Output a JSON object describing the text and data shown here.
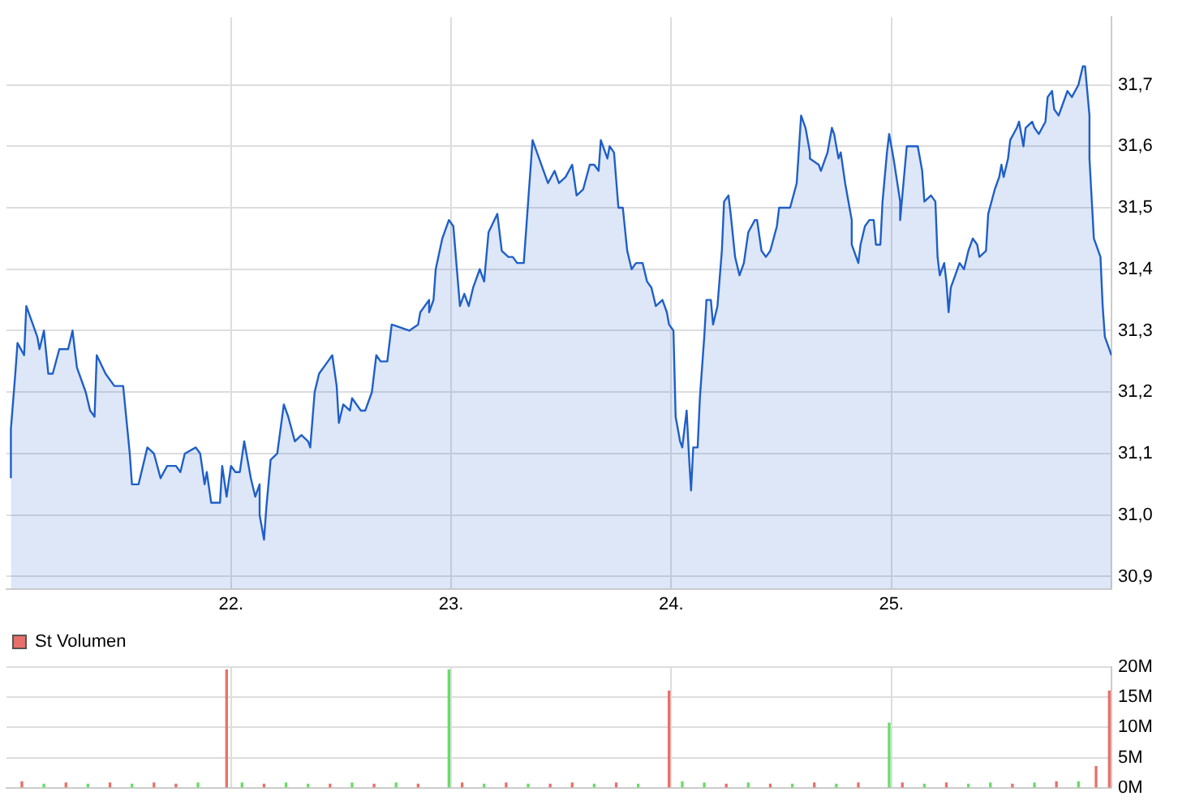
{
  "chart_data": [
    {
      "type": "area",
      "xlim": [
        20.98,
        26.0
      ],
      "xticks": [
        {
          "value": 22,
          "label": "22."
        },
        {
          "value": 23,
          "label": "23."
        },
        {
          "value": 24,
          "label": "24."
        },
        {
          "value": 25,
          "label": "25."
        }
      ],
      "ylim": [
        30.88,
        31.81
      ],
      "yticks": [
        {
          "value": 30.9,
          "label": "30,9"
        },
        {
          "value": 31.0,
          "label": "31,0"
        },
        {
          "value": 31.1,
          "label": "31,1"
        },
        {
          "value": 31.2,
          "label": "31,2"
        },
        {
          "value": 31.3,
          "label": "31,3"
        },
        {
          "value": 31.4,
          "label": "31,4"
        },
        {
          "value": 31.5,
          "label": "31,5"
        },
        {
          "value": 31.6,
          "label": "31,6"
        },
        {
          "value": 31.7,
          "label": "31,7"
        }
      ],
      "grid": true,
      "series": [
        {
          "color": "#1f5fc8",
          "x": [
            21.0,
            21.0,
            21.02,
            21.03,
            21.06,
            21.07,
            21.1,
            21.12,
            21.13,
            21.15,
            21.17,
            21.19,
            21.22,
            21.26,
            21.28,
            21.3,
            21.34,
            21.36,
            21.38,
            21.39,
            21.43,
            21.47,
            21.51,
            21.54,
            21.55,
            21.58,
            21.62,
            21.65,
            21.68,
            21.71,
            21.75,
            21.77,
            21.79,
            21.84,
            21.86,
            21.88,
            21.89,
            21.91,
            21.93,
            21.95,
            21.96,
            21.98,
            22.0,
            22.02,
            22.04,
            22.06,
            22.09,
            22.11,
            22.13,
            22.13,
            22.15,
            22.16,
            22.18,
            22.21,
            22.24,
            22.26,
            22.29,
            22.32,
            22.35,
            22.36,
            22.38,
            22.4,
            22.44,
            22.46,
            22.48,
            22.49,
            22.51,
            22.54,
            22.55,
            22.59,
            22.61,
            22.64,
            22.66,
            22.68,
            22.71,
            22.73,
            22.81,
            22.85,
            22.86,
            22.9,
            22.9,
            22.92,
            22.93,
            22.96,
            22.99,
            23.01,
            23.04,
            23.06,
            23.08,
            23.1,
            23.13,
            23.15,
            23.17,
            23.21,
            23.23,
            23.26,
            23.28,
            23.3,
            23.33,
            23.35,
            23.37,
            23.39,
            23.42,
            23.44,
            23.47,
            23.49,
            23.52,
            23.55,
            23.57,
            23.6,
            23.63,
            23.65,
            23.67,
            23.68,
            23.71,
            23.72,
            23.74,
            23.76,
            23.78,
            23.8,
            23.82,
            23.84,
            23.87,
            23.89,
            23.91,
            23.93,
            23.96,
            23.98,
            23.99,
            24.01,
            24.02,
            24.04,
            24.05,
            24.07,
            24.08,
            24.09,
            24.1,
            24.12,
            24.13,
            24.15,
            24.16,
            24.18,
            24.19,
            24.21,
            24.23,
            24.24,
            24.26,
            24.27,
            24.29,
            24.31,
            24.33,
            24.35,
            24.38,
            24.39,
            24.41,
            24.43,
            24.45,
            24.48,
            24.49,
            24.54,
            24.57,
            24.59,
            24.61,
            24.63,
            24.63,
            24.67,
            24.68,
            24.71,
            24.73,
            24.74,
            24.76,
            24.77,
            24.79,
            24.82,
            24.82,
            24.85,
            24.86,
            24.88,
            24.9,
            24.92,
            24.93,
            24.95,
            24.96,
            24.98,
            24.99,
            25.0,
            25.01,
            25.04,
            25.04,
            25.07,
            25.07,
            25.12,
            25.14,
            25.15,
            25.18,
            25.2,
            25.21,
            25.22,
            25.24,
            25.25,
            25.26,
            25.27,
            25.29,
            25.31,
            25.33,
            25.35,
            25.37,
            25.39,
            25.4,
            25.43,
            25.44,
            25.47,
            25.49,
            25.5,
            25.51,
            25.53,
            25.54,
            25.57,
            25.58,
            25.6,
            25.61,
            25.64,
            25.65,
            25.67,
            25.7,
            25.71,
            25.73,
            25.74,
            25.76,
            25.78,
            25.8,
            25.82,
            25.85,
            25.87,
            25.88,
            25.9,
            25.9,
            25.92,
            25.93,
            25.95,
            25.96,
            25.97,
            25.99,
            26.0
          ],
          "values": [
            31.06,
            31.14,
            31.23,
            31.28,
            31.26,
            31.34,
            31.31,
            31.29,
            31.27,
            31.3,
            31.23,
            31.23,
            31.27,
            31.27,
            31.3,
            31.24,
            31.2,
            31.17,
            31.16,
            31.26,
            31.23,
            31.21,
            31.21,
            31.1,
            31.05,
            31.05,
            31.11,
            31.1,
            31.06,
            31.08,
            31.08,
            31.07,
            31.1,
            31.11,
            31.1,
            31.05,
            31.07,
            31.02,
            31.02,
            31.02,
            31.08,
            31.03,
            31.08,
            31.07,
            31.07,
            31.12,
            31.06,
            31.03,
            31.05,
            31.0,
            30.96,
            31.01,
            31.09,
            31.1,
            31.18,
            31.16,
            31.12,
            31.13,
            31.12,
            31.11,
            31.2,
            31.23,
            31.25,
            31.26,
            31.21,
            31.15,
            31.18,
            31.17,
            31.19,
            31.17,
            31.17,
            31.2,
            31.26,
            31.25,
            31.25,
            31.31,
            31.3,
            31.31,
            31.33,
            31.35,
            31.33,
            31.35,
            31.4,
            31.45,
            31.48,
            31.47,
            31.34,
            31.36,
            31.34,
            31.37,
            31.4,
            31.38,
            31.46,
            31.49,
            31.43,
            31.42,
            31.42,
            31.41,
            31.41,
            31.51,
            31.61,
            31.59,
            31.56,
            31.54,
            31.56,
            31.54,
            31.55,
            31.57,
            31.52,
            31.53,
            31.57,
            31.57,
            31.56,
            31.61,
            31.58,
            31.6,
            31.59,
            31.5,
            31.5,
            31.43,
            31.4,
            31.41,
            31.41,
            31.38,
            31.37,
            31.34,
            31.35,
            31.33,
            31.31,
            31.3,
            31.16,
            31.12,
            31.11,
            31.17,
            31.1,
            31.04,
            31.11,
            31.11,
            31.19,
            31.29,
            31.35,
            31.35,
            31.31,
            31.34,
            31.43,
            31.51,
            31.52,
            31.49,
            31.42,
            31.39,
            31.41,
            31.46,
            31.48,
            31.48,
            31.43,
            31.42,
            31.43,
            31.47,
            31.5,
            31.5,
            31.54,
            31.65,
            31.63,
            31.59,
            31.58,
            31.57,
            31.56,
            31.59,
            31.63,
            31.62,
            31.58,
            31.59,
            31.54,
            31.48,
            31.44,
            31.41,
            31.44,
            31.47,
            31.48,
            31.48,
            31.44,
            31.44,
            31.51,
            31.59,
            31.62,
            31.6,
            31.58,
            31.51,
            31.48,
            31.6,
            31.6,
            31.6,
            31.56,
            31.51,
            31.52,
            31.51,
            31.42,
            31.39,
            31.41,
            31.38,
            31.33,
            31.37,
            31.39,
            31.41,
            31.4,
            31.43,
            31.45,
            31.44,
            31.42,
            31.43,
            31.49,
            31.53,
            31.55,
            31.57,
            31.55,
            31.58,
            31.61,
            31.63,
            31.64,
            31.6,
            31.63,
            31.64,
            31.63,
            31.62,
            31.64,
            31.68,
            31.69,
            31.66,
            31.65,
            31.67,
            31.69,
            31.68,
            31.7,
            31.73,
            31.73,
            31.65,
            31.58,
            31.45,
            31.44,
            31.42,
            31.34,
            31.29,
            31.27,
            31.26
          ]
        }
      ]
    },
    {
      "type": "bar",
      "legend": "top left",
      "tick_labels": "y",
      "xlim": [
        20.98,
        26.0
      ],
      "xticks": [
        {
          "value": 22,
          "label": null
        },
        {
          "value": 23,
          "label": null
        },
        {
          "value": 24,
          "label": null
        },
        {
          "value": 25,
          "label": null
        }
      ],
      "ylim": [
        0,
        20
      ],
      "yticks": [
        {
          "value": 0,
          "label": "0M"
        },
        {
          "value": 5,
          "label": "5M"
        },
        {
          "value": 10,
          "label": "10M"
        },
        {
          "value": 15,
          "label": "15M"
        },
        {
          "value": 20,
          "label": "20M"
        }
      ],
      "grid": true,
      "series": [
        {
          "name": "St Volumen",
          "color": "#e8706a",
          "x": [
            21.05,
            21.15,
            21.25,
            21.35,
            21.45,
            21.55,
            21.65,
            21.75,
            21.85,
            21.98,
            22.05,
            22.15,
            22.25,
            22.35,
            22.45,
            22.55,
            22.65,
            22.75,
            22.85,
            22.99,
            23.05,
            23.15,
            23.25,
            23.35,
            23.45,
            23.55,
            23.65,
            23.75,
            23.85,
            23.99,
            24.05,
            24.15,
            24.25,
            24.35,
            24.45,
            24.55,
            24.65,
            24.75,
            24.85,
            24.99,
            25.05,
            25.15,
            25.25,
            25.35,
            25.45,
            25.55,
            25.65,
            25.75,
            25.85,
            25.93,
            25.99
          ],
          "values": [
            1.0,
            0.6,
            0.8,
            0.6,
            0.8,
            0.6,
            0.8,
            0.6,
            0.8,
            19.5,
            0.8,
            0.6,
            0.8,
            0.6,
            0.6,
            0.8,
            0.6,
            0.8,
            0.6,
            19.5,
            0.8,
            0.6,
            0.8,
            0.6,
            0.6,
            0.8,
            0.6,
            0.8,
            0.6,
            16,
            1.0,
            0.8,
            0.6,
            0.8,
            0.6,
            0.6,
            0.8,
            0.6,
            0.8,
            10.7,
            0.8,
            0.6,
            0.8,
            0.6,
            0.8,
            0.6,
            0.8,
            1.0,
            1.0,
            3.5,
            16
          ],
          "colors": [
            "#e8706a",
            "#66dd66",
            "#e8706a",
            "#66dd66",
            "#e8706a",
            "#66dd66",
            "#e8706a",
            "#e8706a",
            "#66dd66",
            "#e8706a",
            "#66dd66",
            "#e8706a",
            "#66dd66",
            "#66dd66",
            "#e8706a",
            "#66dd66",
            "#e8706a",
            "#66dd66",
            "#e8706a",
            "#66dd66",
            "#e8706a",
            "#66dd66",
            "#e8706a",
            "#66dd66",
            "#e8706a",
            "#e8706a",
            "#66dd66",
            "#e8706a",
            "#66dd66",
            "#e8706a",
            "#66dd66",
            "#66dd66",
            "#e8706a",
            "#66dd66",
            "#e8706a",
            "#66dd66",
            "#e8706a",
            "#66dd66",
            "#e8706a",
            "#66dd66",
            "#e8706a",
            "#66dd66",
            "#e8706a",
            "#66dd66",
            "#66dd66",
            "#e8706a",
            "#66dd66",
            "#e8706a",
            "#66dd66",
            "#e8706a",
            "#e8706a"
          ]
        }
      ]
    }
  ]
}
